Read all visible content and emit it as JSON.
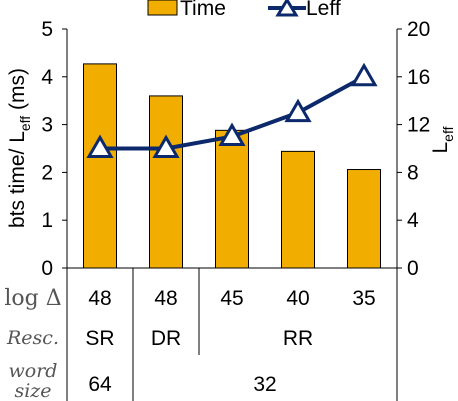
{
  "chart_data": {
    "type": "bar+line",
    "categories": [
      "SR",
      "DR",
      "RR",
      "RR",
      "RR"
    ],
    "log_delta": [
      "48",
      "48",
      "45",
      "40",
      "35"
    ],
    "word_size": [
      "64",
      "32"
    ],
    "row_labels": {
      "log_delta": "log Δ",
      "resc": "Resc.",
      "word_size_1": "word",
      "word_size_2": "size"
    },
    "group_labels": {
      "resc": [
        "SR",
        "DR",
        "RR"
      ],
      "word": [
        "64",
        "32"
      ]
    },
    "series": [
      {
        "name": "Time",
        "type": "bar",
        "axis": "left",
        "values": [
          4.27,
          3.6,
          2.88,
          2.44,
          2.06
        ],
        "color": "#F2AE00"
      },
      {
        "name": "Leff",
        "type": "line",
        "axis": "right",
        "values": [
          10,
          10,
          11,
          13,
          16
        ],
        "color": "#0C2A6B"
      }
    ],
    "left_axis": {
      "label_main": "bts time/ L",
      "label_sub": "eff",
      "label_tail": " (ms)",
      "ylim": [
        0,
        5
      ],
      "ticks": [
        "0",
        "1",
        "2",
        "3",
        "4",
        "5"
      ]
    },
    "right_axis": {
      "label_main": "L",
      "label_sub": "eff",
      "ylim": [
        0,
        20
      ],
      "ticks": [
        "0",
        "4",
        "8",
        "12",
        "16",
        "20"
      ]
    },
    "legend": {
      "placement": "top",
      "items": [
        "Time",
        "Leff"
      ]
    }
  }
}
